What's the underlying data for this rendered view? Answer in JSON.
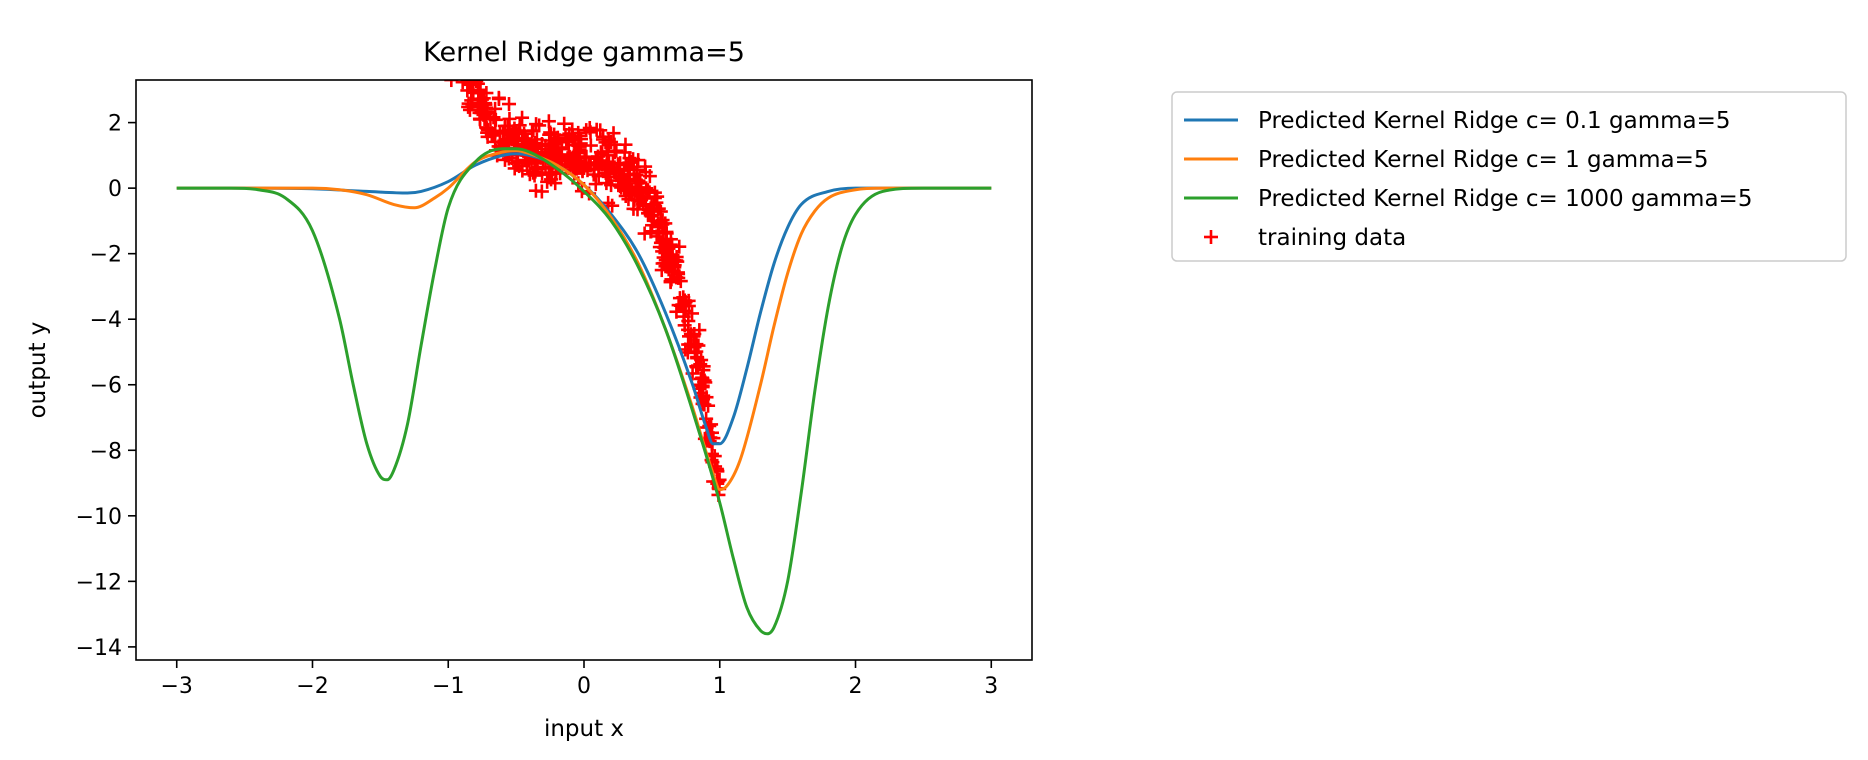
{
  "chart_data": {
    "type": "line",
    "title": "Kernel Ridge gamma=5",
    "xlabel": "input x",
    "ylabel": "output y",
    "xlim": [
      -3.3,
      3.3
    ],
    "ylim": [
      -14.4,
      3.3
    ],
    "xticks": [
      -3,
      -2,
      -1,
      0,
      1,
      2,
      3
    ],
    "yticks": [
      2,
      0,
      -2,
      -4,
      -6,
      -8,
      -10,
      -12,
      -14
    ],
    "grid": false,
    "legend_position": "outside-right",
    "series": [
      {
        "name": "Predicted Kernel Ridge c= 0.1 gamma=5",
        "color": "#1f77b4",
        "x": [
          -3,
          -2.5,
          -2,
          -1.6,
          -1.3,
          -1.2,
          -1.0,
          -0.8,
          -0.6,
          -0.5,
          -0.4,
          -0.2,
          0,
          0.2,
          0.4,
          0.6,
          0.8,
          0.9,
          0.95,
          1.0,
          1.1,
          1.2,
          1.3,
          1.4,
          1.5,
          1.6,
          1.8,
          2.0,
          2.2,
          2.5,
          3.0
        ],
        "y": [
          0,
          0,
          -0.02,
          -0.1,
          -0.15,
          -0.1,
          0.2,
          0.7,
          1.0,
          1.05,
          1.0,
          0.7,
          0.1,
          -0.8,
          -2.0,
          -3.8,
          -6.0,
          -7.3,
          -7.8,
          -7.8,
          -7.0,
          -5.5,
          -3.8,
          -2.3,
          -1.2,
          -0.5,
          -0.1,
          0,
          0,
          0,
          0
        ]
      },
      {
        "name": "Predicted Kernel Ridge c= 1 gamma=5",
        "color": "#ff7f0e",
        "x": [
          -3,
          -2.5,
          -2,
          -1.8,
          -1.6,
          -1.4,
          -1.25,
          -1.1,
          -1.0,
          -0.8,
          -0.6,
          -0.5,
          -0.4,
          -0.2,
          0,
          0.2,
          0.4,
          0.6,
          0.8,
          0.95,
          1.0,
          1.05,
          1.15,
          1.3,
          1.4,
          1.5,
          1.6,
          1.7,
          1.8,
          2.0,
          2.2,
          2.5,
          3.0
        ],
        "y": [
          0,
          0,
          0,
          -0.05,
          -0.2,
          -0.5,
          -0.6,
          -0.3,
          0.0,
          0.8,
          1.1,
          1.15,
          1.05,
          0.7,
          0.1,
          -0.9,
          -2.3,
          -4.3,
          -6.7,
          -8.7,
          -9.2,
          -9.1,
          -8.3,
          -6.0,
          -4.2,
          -2.6,
          -1.4,
          -0.7,
          -0.3,
          -0.05,
          0,
          0,
          0
        ]
      },
      {
        "name": "Predicted Kernel Ridge c= 1000 gamma=5",
        "color": "#2ca02c",
        "x": [
          -3,
          -2.6,
          -2.4,
          -2.2,
          -2.0,
          -1.8,
          -1.7,
          -1.6,
          -1.5,
          -1.45,
          -1.4,
          -1.3,
          -1.2,
          -1.1,
          -1.0,
          -0.8,
          -0.6,
          -0.5,
          -0.4,
          -0.2,
          0,
          0.2,
          0.4,
          0.6,
          0.8,
          1.0,
          1.1,
          1.2,
          1.3,
          1.35,
          1.4,
          1.5,
          1.6,
          1.7,
          1.8,
          1.9,
          2.0,
          2.2,
          2.5,
          3.0
        ],
        "y": [
          0,
          0,
          -0.05,
          -0.3,
          -1.3,
          -4.0,
          -6.0,
          -7.8,
          -8.8,
          -8.9,
          -8.6,
          -7.2,
          -4.8,
          -2.5,
          -0.6,
          0.8,
          1.2,
          1.2,
          1.1,
          0.6,
          -0.1,
          -1.0,
          -2.4,
          -4.3,
          -6.8,
          -9.6,
          -11.3,
          -12.8,
          -13.5,
          -13.6,
          -13.4,
          -12.0,
          -9.3,
          -6.2,
          -3.6,
          -1.8,
          -0.8,
          -0.1,
          0,
          0
        ]
      }
    ],
    "scatter": {
      "name": "training data",
      "color": "#ff0000",
      "marker": "+",
      "x_range": [
        -1,
        1
      ],
      "model": "y = 1 - 0.2x - 3x^2 - 7x^3 (approx.) + noise",
      "noise_sd": 0.45,
      "count": 600
    }
  }
}
